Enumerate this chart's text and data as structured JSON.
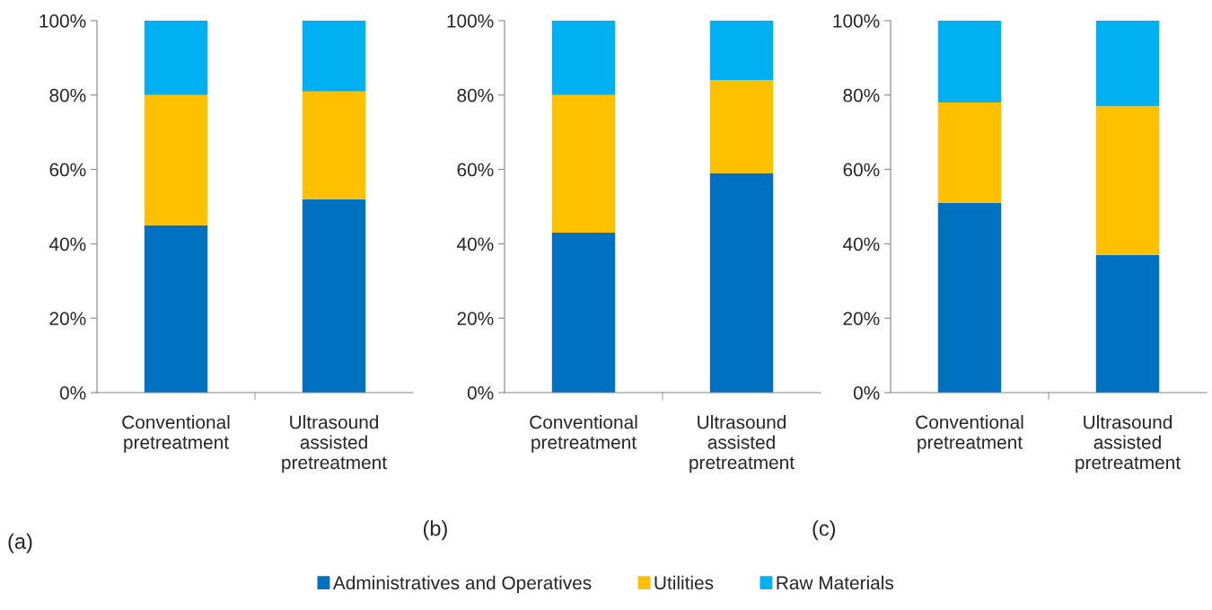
{
  "chart_data": [
    {
      "type": "bar",
      "stacked": true,
      "categories": [
        "Conventional\npretreatment",
        "Ultrasound\nassisted\npretreatment"
      ],
      "ylim": [
        0,
        100
      ],
      "yticks": [
        {
          "value": 0,
          "label": "0%"
        },
        {
          "value": 20,
          "label": "20%"
        },
        {
          "value": 40,
          "label": "40%"
        },
        {
          "value": 60,
          "label": "60%"
        },
        {
          "value": 80,
          "label": "80%"
        },
        {
          "value": 100,
          "label": "100%"
        }
      ],
      "grid": false,
      "legend": "bottom",
      "annotations": [
        "(a)"
      ],
      "series": [
        {
          "name": "Administratives and Operatives",
          "color": "#0070c0",
          "values": [
            45,
            52
          ]
        },
        {
          "name": "Utilities",
          "color": "#ffc000",
          "values": [
            35,
            29
          ]
        },
        {
          "name": "Raw Materials",
          "color": "#00b0f0",
          "values": [
            20,
            19
          ]
        }
      ]
    },
    {
      "type": "bar",
      "stacked": true,
      "categories": [
        "Conventional\npretreatment",
        "Ultrasound\nassisted\npretreatment"
      ],
      "ylim": [
        0,
        100
      ],
      "yticks": [
        {
          "value": 0,
          "label": "0%"
        },
        {
          "value": 20,
          "label": "20%"
        },
        {
          "value": 40,
          "label": "40%"
        },
        {
          "value": 60,
          "label": "60%"
        },
        {
          "value": 80,
          "label": "80%"
        },
        {
          "value": 100,
          "label": "100%"
        }
      ],
      "grid": false,
      "annotations": [
        "(b)"
      ],
      "series": [
        {
          "color": "#0070c0",
          "values": [
            43,
            59
          ]
        },
        {
          "color": "#ffc000",
          "values": [
            37,
            25
          ]
        },
        {
          "color": "#00b0f0",
          "values": [
            20,
            16
          ]
        }
      ]
    },
    {
      "type": "bar",
      "stacked": true,
      "categories": [
        "Conventional\npretreatment",
        "Ultrasound\nassisted\npretreatment"
      ],
      "ylim": [
        0,
        100
      ],
      "yticks": [
        {
          "value": 0,
          "label": "0%"
        },
        {
          "value": 20,
          "label": "20%"
        },
        {
          "value": 40,
          "label": "40%"
        },
        {
          "value": 60,
          "label": "60%"
        },
        {
          "value": 80,
          "label": "80%"
        },
        {
          "value": 100,
          "label": "100%"
        }
      ],
      "grid": false,
      "annotations": [
        "(c)"
      ],
      "series": [
        {
          "color": "#0070c0",
          "values": [
            51,
            37
          ]
        },
        {
          "color": "#ffc000",
          "values": [
            27,
            40
          ]
        },
        {
          "color": "#00b0f0",
          "values": [
            22,
            23
          ]
        }
      ]
    }
  ]
}
